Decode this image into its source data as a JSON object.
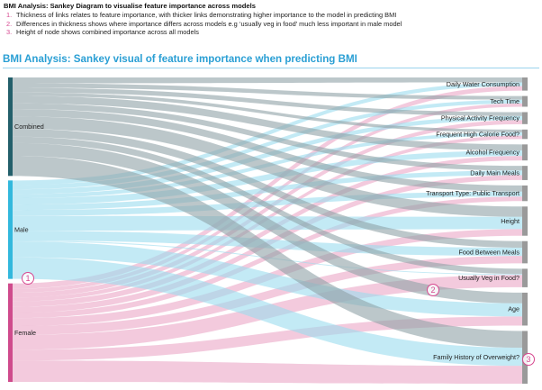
{
  "header": {
    "heading": "BMI Analysis: Sankey Diagram to visualise feature importance across models",
    "notes": [
      {
        "num": "1.",
        "text": "Thickness of links relates to feature importance, with thicker links demonstrating higher importance to the model in predicting BMI"
      },
      {
        "num": "2.",
        "text": "Differences in thickness shows where importance differs across models e.g ‘usually veg in food’ much less important in male model"
      },
      {
        "num": "3.",
        "text": "Height of node shows combined importance across all models"
      }
    ]
  },
  "title": "BMI Analysis: Sankey visual of feature importance when predicting BMI",
  "markers": [
    "1",
    "2",
    "3"
  ],
  "colors": {
    "combined": "#235f6b",
    "male": "#32b8dd",
    "female": "#cf4b8c",
    "combined_link": "#8fa1a6",
    "male_link": "#9bdcee",
    "female_link": "#eba6c6",
    "target_node": "#9a9a9a",
    "marker": "#d6478f",
    "title": "#2a9fd4"
  },
  "chart_data": {
    "type": "sankey",
    "sources": [
      {
        "name": "Combined",
        "value": 1.0
      },
      {
        "name": "Male",
        "value": 1.0
      },
      {
        "name": "Female",
        "value": 1.0
      }
    ],
    "targets": [
      "Daily Water Consumption",
      "Tech Time",
      "Physical Activity Frequency",
      "Frequent High Calorie Food?",
      "Alcohol Frequency",
      "Daily Main Meals",
      "Transport Type: Public Transport",
      "Height",
      "Food Between Meals",
      "Usually Veg in Food?",
      "Age",
      "Family History of Overweight?"
    ],
    "links": {
      "Combined": [
        0.06,
        0.045,
        0.048,
        0.035,
        0.075,
        0.058,
        0.075,
        0.125,
        0.08,
        0.065,
        0.13,
        0.204
      ],
      "Male": [
        0.045,
        0.045,
        0.05,
        0.04,
        0.065,
        0.055,
        0.06,
        0.15,
        0.1,
        0.01,
        0.16,
        0.22
      ],
      "Female": [
        0.055,
        0.04,
        0.048,
        0.04,
        0.055,
        0.06,
        0.055,
        0.08,
        0.09,
        0.15,
        0.11,
        0.217
      ]
    }
  }
}
